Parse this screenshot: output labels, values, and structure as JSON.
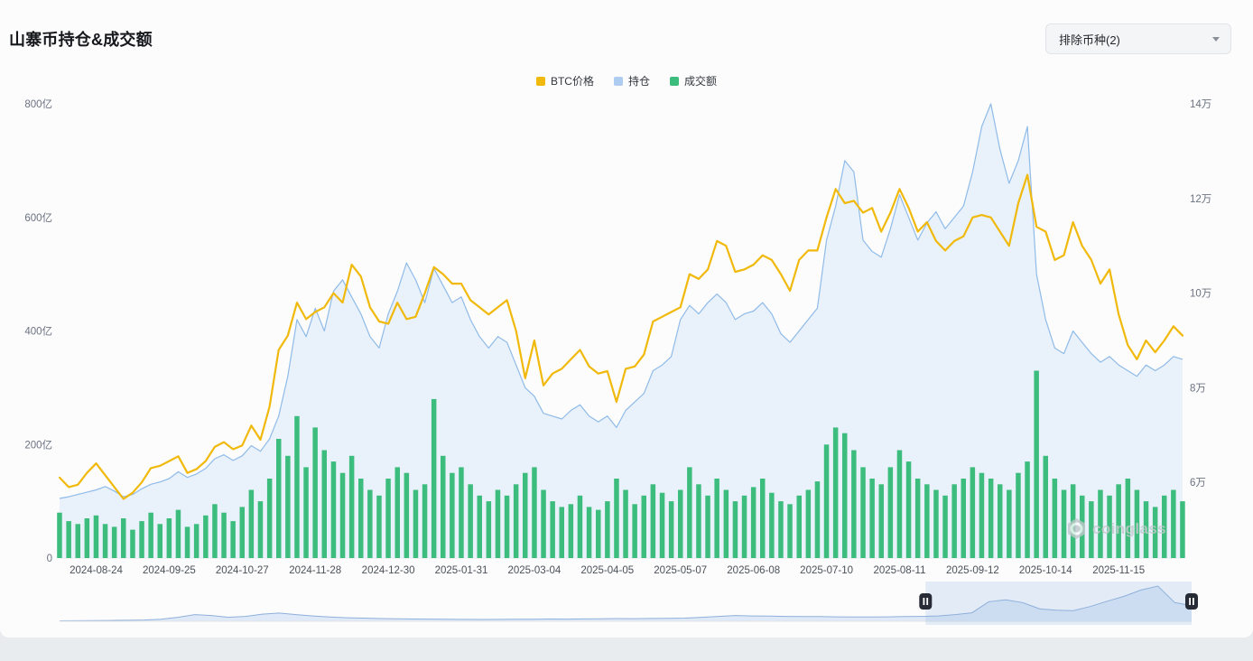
{
  "header": {
    "title": "山寨币持仓&成交额"
  },
  "controls": {
    "exclude_dropdown": {
      "label": "排除币种(2)"
    }
  },
  "legend": [
    {
      "label": "BTC价格",
      "color": "#F0B90B"
    },
    {
      "label": "持仓",
      "color": "#AECBF0"
    },
    {
      "label": "成交额",
      "color": "#3DBD7D"
    }
  ],
  "watermark": "coinglass",
  "chart_data": {
    "type": "mixed-line-area-bar",
    "title": "山寨币持仓&成交额",
    "legend_position": "top-center",
    "grid": false,
    "start_date": "2024-08-08",
    "sample_interval_days": 4,
    "x_ticks": [
      "2024-08-24",
      "2024-09-25",
      "2024-10-27",
      "2024-11-28",
      "2024-12-30",
      "2025-01-31",
      "2025-03-04",
      "2025-04-05",
      "2025-05-07",
      "2025-06-08",
      "2025-07-10",
      "2025-08-11",
      "2025-09-12",
      "2025-10-14",
      "2025-11-15"
    ],
    "x_tick_first_sample": 4,
    "x_tick_step_samples": 8,
    "left_axis": {
      "unit": "亿",
      "min": 0,
      "max": 800,
      "tick_values": [
        0,
        200,
        400,
        600,
        800
      ],
      "ticks": [
        "0",
        "200亿",
        "400亿",
        "600亿",
        "800亿"
      ]
    },
    "right_axis": {
      "unit": "万",
      "min": 4.4,
      "max": 14,
      "tick_values": [
        6,
        8,
        10,
        12,
        14
      ],
      "ticks": [
        "6万",
        "8万",
        "10万",
        "12万",
        "14万"
      ]
    },
    "series": [
      {
        "name": "BTC价格",
        "type": "line",
        "axis": "right",
        "color": "#F0B90B",
        "values": [
          6.1,
          5.9,
          5.95,
          6.2,
          6.4,
          6.15,
          5.9,
          5.65,
          5.78,
          6.0,
          6.3,
          6.35,
          6.45,
          6.55,
          6.2,
          6.28,
          6.45,
          6.75,
          6.85,
          6.7,
          6.78,
          7.2,
          6.9,
          7.6,
          8.8,
          9.1,
          9.8,
          9.45,
          9.6,
          9.7,
          10.0,
          9.8,
          10.6,
          10.35,
          9.7,
          9.4,
          9.35,
          9.8,
          9.45,
          9.5,
          10.0,
          10.55,
          10.4,
          10.2,
          10.2,
          9.85,
          9.7,
          9.55,
          9.7,
          9.85,
          9.2,
          8.2,
          9.0,
          8.05,
          8.3,
          8.4,
          8.6,
          8.8,
          8.45,
          8.3,
          8.35,
          7.7,
          8.4,
          8.45,
          8.7,
          9.4,
          9.5,
          9.6,
          9.7,
          10.4,
          10.3,
          10.5,
          11.1,
          11.0,
          10.45,
          10.5,
          10.6,
          10.8,
          10.7,
          10.4,
          10.05,
          10.7,
          10.9,
          10.9,
          11.6,
          12.2,
          11.9,
          11.95,
          11.7,
          11.8,
          11.3,
          11.7,
          12.2,
          11.8,
          11.3,
          11.5,
          11.1,
          10.9,
          11.1,
          11.2,
          11.6,
          11.65,
          11.6,
          11.3,
          11.0,
          11.9,
          12.5,
          11.4,
          11.3,
          10.7,
          10.8,
          11.5,
          11.0,
          10.7,
          10.2,
          10.5,
          9.55,
          8.9,
          8.6,
          9.0,
          8.75,
          9.0,
          9.3,
          9.1
        ]
      },
      {
        "name": "持仓",
        "type": "area",
        "axis": "left",
        "color": "#8FBBE8",
        "fill": "#E9F1FB",
        "values": [
          105,
          108,
          112,
          116,
          120,
          126,
          118,
          108,
          112,
          122,
          130,
          134,
          140,
          152,
          142,
          148,
          158,
          175,
          182,
          172,
          180,
          198,
          188,
          210,
          250,
          320,
          420,
          390,
          440,
          400,
          470,
          490,
          460,
          430,
          390,
          370,
          430,
          470,
          520,
          490,
          450,
          510,
          480,
          450,
          460,
          420,
          390,
          370,
          390,
          380,
          340,
          300,
          285,
          255,
          250,
          245,
          260,
          270,
          250,
          240,
          250,
          230,
          260,
          275,
          290,
          330,
          340,
          355,
          420,
          445,
          430,
          450,
          465,
          450,
          420,
          430,
          435,
          450,
          430,
          395,
          380,
          400,
          420,
          440,
          560,
          620,
          700,
          680,
          560,
          540,
          530,
          580,
          640,
          600,
          560,
          590,
          610,
          580,
          600,
          620,
          680,
          760,
          800,
          720,
          660,
          700,
          760,
          500,
          420,
          370,
          360,
          400,
          380,
          360,
          345,
          355,
          340,
          330,
          320,
          340,
          330,
          340,
          355,
          350
        ]
      },
      {
        "name": "成交额",
        "type": "bar",
        "axis": "left",
        "color": "#3DBD7D",
        "values": [
          80,
          65,
          60,
          70,
          75,
          60,
          55,
          70,
          50,
          65,
          80,
          60,
          70,
          85,
          55,
          60,
          75,
          95,
          80,
          65,
          90,
          120,
          100,
          140,
          210,
          180,
          250,
          160,
          230,
          190,
          170,
          150,
          180,
          140,
          120,
          110,
          140,
          160,
          150,
          120,
          130,
          280,
          180,
          150,
          160,
          130,
          110,
          100,
          120,
          110,
          130,
          150,
          160,
          120,
          100,
          90,
          95,
          110,
          90,
          85,
          100,
          140,
          120,
          95,
          110,
          130,
          115,
          100,
          120,
          160,
          130,
          110,
          140,
          120,
          100,
          110,
          125,
          140,
          115,
          100,
          95,
          110,
          120,
          135,
          200,
          230,
          220,
          190,
          160,
          140,
          130,
          160,
          190,
          170,
          140,
          130,
          120,
          110,
          130,
          140,
          160,
          150,
          140,
          130,
          120,
          150,
          170,
          330,
          180,
          140,
          120,
          130,
          110,
          100,
          120,
          110,
          130,
          140,
          120,
          100,
          90,
          110,
          120,
          100
        ]
      }
    ],
    "navigator": {
      "values": [
        10,
        12,
        15,
        18,
        22,
        28,
        45,
        90,
        150,
        130,
        90,
        110,
        160,
        185,
        150,
        120,
        95,
        80,
        70,
        60,
        55,
        50,
        48,
        45,
        42,
        40,
        42,
        44,
        46,
        50,
        48,
        52,
        55,
        60,
        58,
        62,
        65,
        70,
        90,
        110,
        130,
        120,
        115,
        110,
        108,
        105,
        100,
        98,
        96,
        100,
        105,
        110,
        120,
        150,
        190,
        440,
        480,
        420,
        280,
        250,
        240,
        330,
        450,
        560,
        700,
        790,
        420,
        350
      ],
      "selection_start": 0.765,
      "selection_end": 1.0
    }
  }
}
